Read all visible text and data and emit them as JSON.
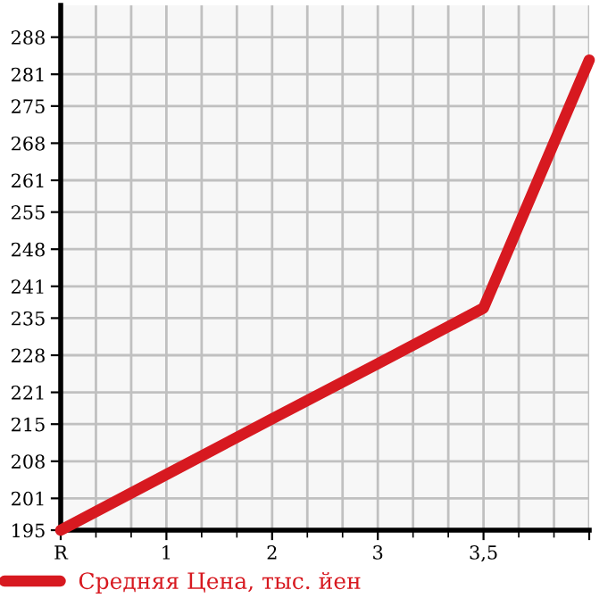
{
  "chart_data": {
    "type": "line",
    "categories": [
      "R",
      "1",
      "2",
      "3",
      "3,5",
      null
    ],
    "series": [
      {
        "name": "Средняя Цена, тыс. йен",
        "color": "#d71920",
        "values": [
          195,
          205.5,
          216,
          226.4,
          236.9,
          283.7
        ]
      }
    ],
    "ylim": [
      195,
      294
    ],
    "yticks": [
      195,
      201,
      208,
      215,
      221,
      228,
      235,
      241,
      248,
      255,
      261,
      268,
      275,
      281,
      288
    ],
    "grid": true,
    "legend": "bottom",
    "marker": "none",
    "line_style": "solid"
  }
}
